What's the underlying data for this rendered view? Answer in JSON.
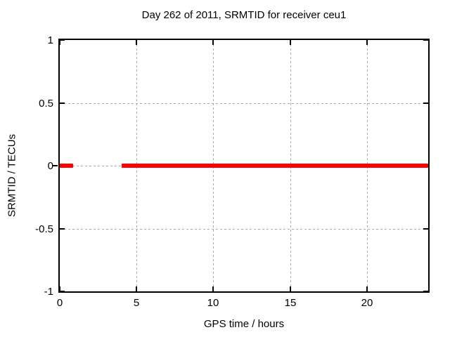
{
  "figure": {
    "background": "#ffffff",
    "text_color": "#000000"
  },
  "chart_data": {
    "type": "line",
    "title": "Day 262 of 2011, SRMTID for receiver ceu1",
    "xlabel": "GPS time / hours",
    "ylabel": "SRMTID / TECUs",
    "xlim": [
      0,
      24
    ],
    "ylim": [
      -1,
      1
    ],
    "xticks": [
      0,
      5,
      10,
      15,
      20
    ],
    "yticks": [
      1,
      0.5,
      0,
      -0.5,
      -1
    ],
    "xtick_labels": [
      "0",
      "5",
      "10",
      "15",
      "20"
    ],
    "ytick_labels": [
      "1",
      "0.5",
      "0",
      "-0.5",
      "-1"
    ],
    "grid": true,
    "grid_style": "dashed",
    "grid_color": "#a9a9a9",
    "border_color": "#000000",
    "legend": "none",
    "series": [
      {
        "name": "SRMTID",
        "color": "#ff0000",
        "style": "thick-horizontal-line",
        "segments": [
          {
            "x_start": 0.0,
            "x_end": 0.85,
            "y": 0
          },
          {
            "x_start": 4.05,
            "x_end": 24.0,
            "y": 0
          }
        ]
      }
    ]
  }
}
